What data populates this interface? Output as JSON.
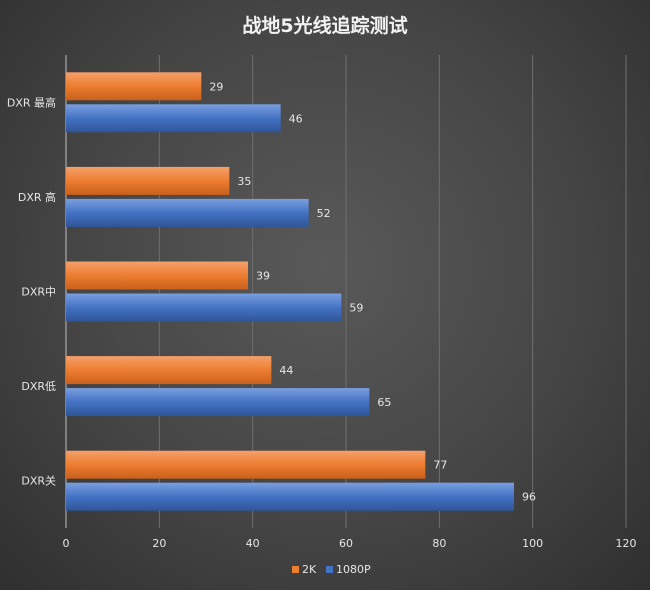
{
  "chart_data": {
    "type": "bar",
    "orientation": "horizontal",
    "title": "战地5光线追踪测试",
    "categories": [
      "DXR 最高",
      "DXR 高",
      "DXR中",
      "DXR低",
      "DXR关"
    ],
    "series": [
      {
        "name": "2K",
        "color": "#ED7D31",
        "values": [
          29,
          35,
          39,
          44,
          77
        ]
      },
      {
        "name": "1080P",
        "color": "#4472C4",
        "values": [
          46,
          52,
          59,
          65,
          96
        ]
      }
    ],
    "xlim": [
      0,
      120
    ],
    "xticks": [
      0,
      20,
      40,
      60,
      80,
      100,
      120
    ],
    "grid": true,
    "legend_position": "bottom",
    "data_labels": true
  }
}
